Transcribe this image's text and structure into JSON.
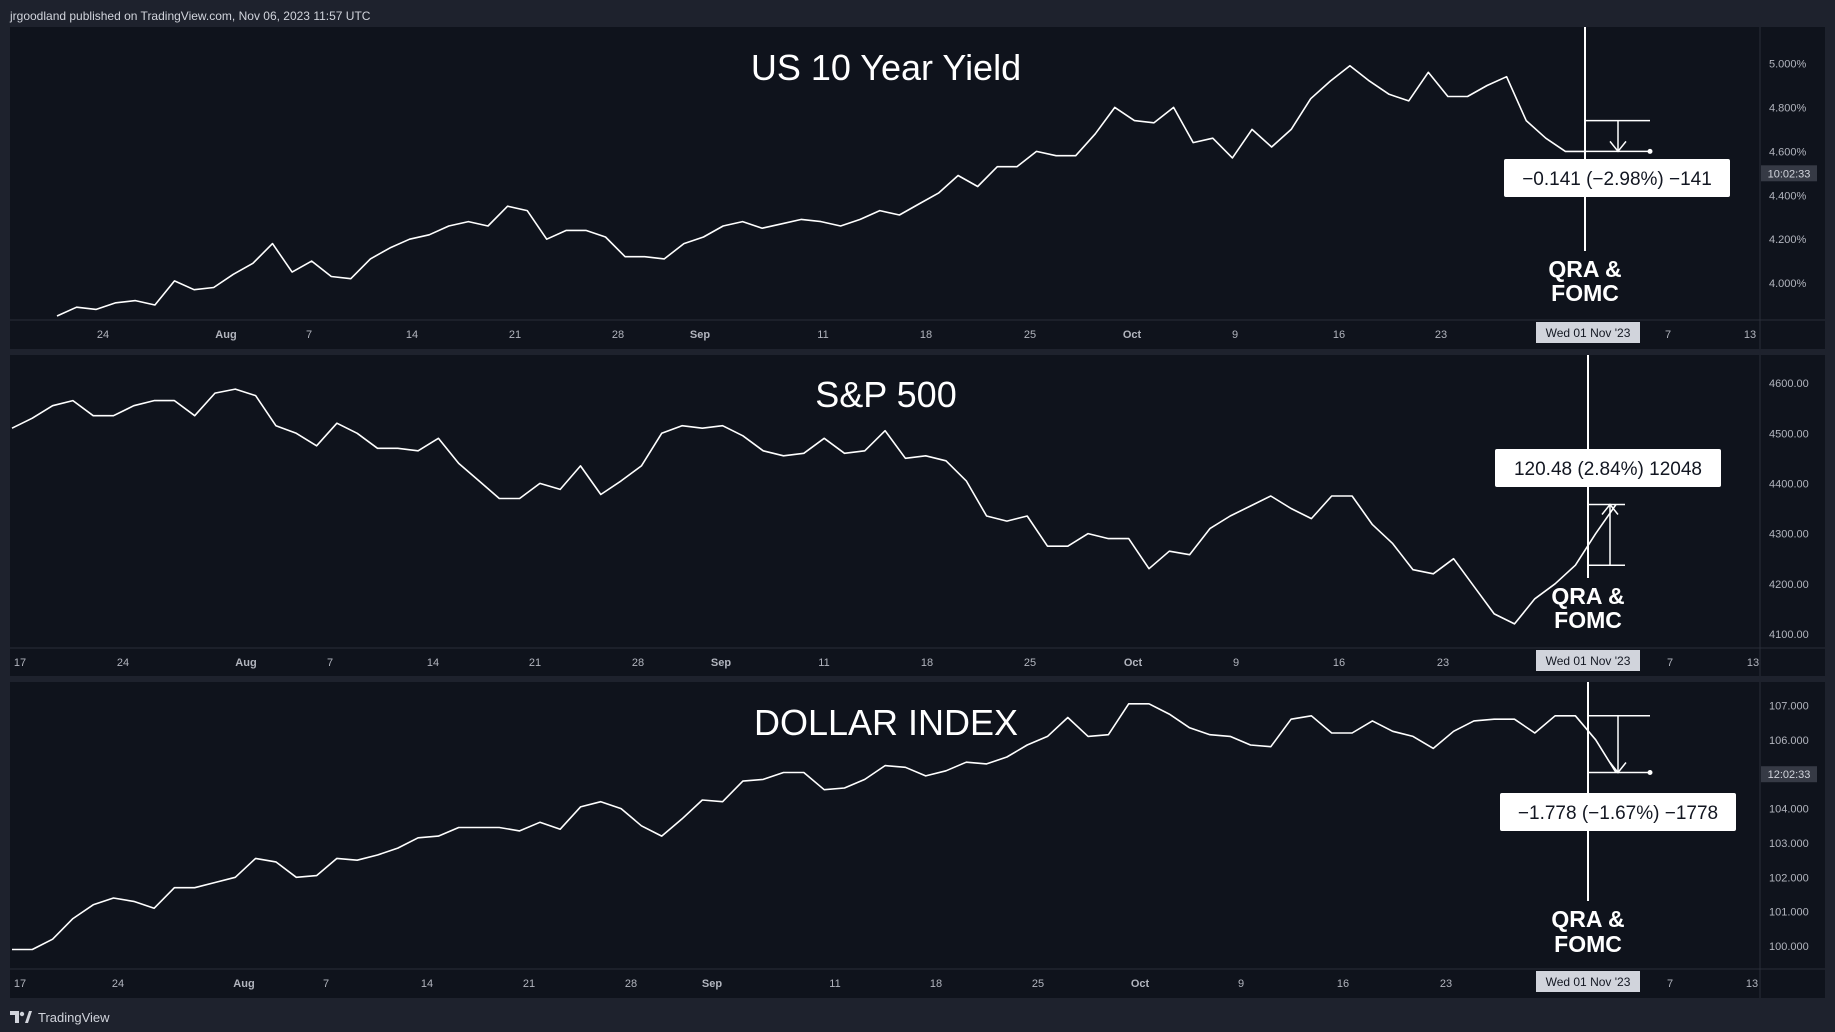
{
  "header": {
    "publish_line": "jrgoodland published on TradingView.com, Nov 06, 2023 11:57 UTC"
  },
  "footer": {
    "brand": "TradingView"
  },
  "theme": {
    "page_bg": "#1e222d",
    "panel_bg": "#0f131c",
    "axis_text": "#b2b5be",
    "line_color": "#ffffff",
    "badge_bg": "#d1d4dc",
    "badge_text": "#131722"
  },
  "date_badge": "Wed 01 Nov '23",
  "event_label": [
    "QRA &",
    "FOMC"
  ],
  "chart_data": [
    {
      "type": "line",
      "title": "US 10 Year Yield",
      "ylim": [
        3.85,
        5.13
      ],
      "y_ticks": [
        "5.000%",
        "4.800%",
        "4.600%",
        "4.400%",
        "4.200%",
        "4.000%"
      ],
      "y_tick_values": [
        5.0,
        4.8,
        4.6,
        4.4,
        4.2,
        4.0
      ],
      "x_ticks": [
        "24",
        "Aug",
        "7",
        "14",
        "21",
        "28",
        "Sep",
        "11",
        "18",
        "25",
        "Oct",
        "9",
        "16",
        "23",
        "7",
        "13"
      ],
      "last_price_badge": "10:02:33",
      "last_price_value": 4.5,
      "measure_label": "−0.141 (−2.98%) −141",
      "measure_direction": "down",
      "measure_from": 4.74,
      "measure_to": 4.6,
      "series": [
        {
          "values": [
            3.85,
            3.89,
            3.88,
            3.91,
            3.92,
            3.9,
            4.01,
            3.97,
            3.98,
            4.04,
            4.09,
            4.18,
            4.05,
            4.1,
            4.03,
            4.02,
            4.11,
            4.16,
            4.2,
            4.22,
            4.26,
            4.28,
            4.26,
            4.35,
            4.33,
            4.2,
            4.24,
            4.24,
            4.21,
            4.12,
            4.12,
            4.11,
            4.18,
            4.21,
            4.26,
            4.28,
            4.25,
            4.27,
            4.29,
            4.28,
            4.26,
            4.29,
            4.33,
            4.31,
            4.36,
            4.41,
            4.49,
            4.44,
            4.53,
            4.53,
            4.6,
            4.58,
            4.58,
            4.68,
            4.8,
            4.74,
            4.73,
            4.8,
            4.64,
            4.66,
            4.57,
            4.7,
            4.62,
            4.7,
            4.84,
            4.92,
            4.99,
            4.92,
            4.86,
            4.83,
            4.96,
            4.85,
            4.85,
            4.9,
            4.94,
            4.74,
            4.66,
            4.6,
            4.6
          ]
        }
      ]
    },
    {
      "type": "line",
      "title": "S&P 500",
      "ylim": [
        4080,
        4640
      ],
      "y_ticks": [
        "4600.00",
        "4500.00",
        "4400.00",
        "4300.00",
        "4200.00",
        "4100.00"
      ],
      "y_tick_values": [
        4600,
        4500,
        4400,
        4300,
        4200,
        4100
      ],
      "x_ticks": [
        "17",
        "24",
        "Aug",
        "7",
        "14",
        "21",
        "28",
        "Sep",
        "11",
        "18",
        "25",
        "Oct",
        "9",
        "16",
        "23",
        "7",
        "13"
      ],
      "measure_label": "120.48 (2.84%) 12048",
      "measure_direction": "up",
      "measure_from": 4237,
      "measure_to": 4358,
      "series": [
        {
          "values": [
            4510,
            4530,
            4555,
            4565,
            4535,
            4535,
            4555,
            4565,
            4565,
            4535,
            4580,
            4588,
            4575,
            4515,
            4500,
            4475,
            4520,
            4500,
            4470,
            4470,
            4465,
            4490,
            4440,
            4405,
            4370,
            4370,
            4400,
            4388,
            4435,
            4378,
            4405,
            4435,
            4500,
            4515,
            4510,
            4515,
            4495,
            4465,
            4455,
            4460,
            4490,
            4460,
            4465,
            4505,
            4450,
            4455,
            4445,
            4405,
            4335,
            4325,
            4335,
            4275,
            4275,
            4300,
            4290,
            4290,
            4230,
            4265,
            4258,
            4310,
            4335,
            4355,
            4375,
            4350,
            4330,
            4375,
            4375,
            4318,
            4280,
            4228,
            4220,
            4250,
            4195,
            4140,
            4120,
            4170,
            4200,
            4237,
            4300,
            4358
          ]
        }
      ]
    },
    {
      "type": "line",
      "title": "DOLLAR INDEX",
      "ylim": [
        99.45,
        107.45
      ],
      "y_ticks": [
        "107.000",
        "106.000",
        "105.000",
        "104.000",
        "103.000",
        "102.000",
        "101.000",
        "100.000"
      ],
      "y_tick_values": [
        107,
        106,
        105,
        104,
        103,
        102,
        101,
        100
      ],
      "x_ticks": [
        "17",
        "24",
        "Aug",
        "7",
        "14",
        "21",
        "28",
        "Sep",
        "11",
        "18",
        "25",
        "Oct",
        "9",
        "16",
        "23",
        "7",
        "13"
      ],
      "last_price_badge": "12:02:33",
      "last_price_value": 105.0,
      "measure_label": "−1.778 (−1.67%) −1778",
      "measure_direction": "down",
      "measure_from": 106.7,
      "measure_to": 105.05,
      "series": [
        {
          "values": [
            99.9,
            99.9,
            100.2,
            100.8,
            101.2,
            101.4,
            101.3,
            101.1,
            101.7,
            101.7,
            101.85,
            102.0,
            102.55,
            102.45,
            102.0,
            102.05,
            102.55,
            102.5,
            102.65,
            102.85,
            103.15,
            103.2,
            103.45,
            103.45,
            103.45,
            103.35,
            103.6,
            103.4,
            104.05,
            104.2,
            104.0,
            103.5,
            103.2,
            103.7,
            104.25,
            104.2,
            104.8,
            104.85,
            105.05,
            105.05,
            104.55,
            104.6,
            104.85,
            105.25,
            105.2,
            104.95,
            105.1,
            105.35,
            105.3,
            105.5,
            105.85,
            106.1,
            106.65,
            106.1,
            106.15,
            107.05,
            107.05,
            106.75,
            106.35,
            106.15,
            106.1,
            105.85,
            105.8,
            106.6,
            106.7,
            106.2,
            106.2,
            106.55,
            106.25,
            106.1,
            105.75,
            106.25,
            106.55,
            106.6,
            106.6,
            106.2,
            106.7,
            106.7,
            106.0,
            105.05
          ]
        }
      ]
    }
  ]
}
